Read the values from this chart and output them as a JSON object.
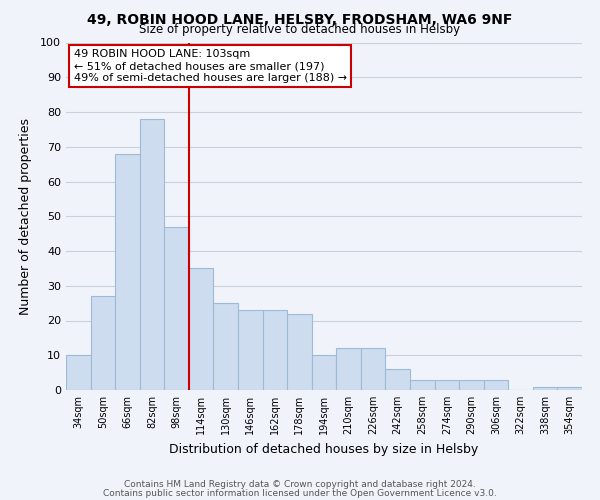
{
  "title": "49, ROBIN HOOD LANE, HELSBY, FRODSHAM, WA6 9NF",
  "subtitle": "Size of property relative to detached houses in Helsby",
  "xlabel": "Distribution of detached houses by size in Helsby",
  "ylabel": "Number of detached properties",
  "bar_labels": [
    "34sqm",
    "50sqm",
    "66sqm",
    "82sqm",
    "98sqm",
    "114sqm",
    "130sqm",
    "146sqm",
    "162sqm",
    "178sqm",
    "194sqm",
    "210sqm",
    "226sqm",
    "242sqm",
    "258sqm",
    "274sqm",
    "290sqm",
    "306sqm",
    "322sqm",
    "338sqm",
    "354sqm"
  ],
  "bar_values": [
    10,
    27,
    68,
    78,
    47,
    35,
    25,
    23,
    23,
    22,
    10,
    12,
    12,
    6,
    3,
    3,
    3,
    3,
    0,
    1,
    1
  ],
  "bar_color": "#cddcee",
  "bar_edge_color": "#9bbbd8",
  "vline_x": 4.5,
  "vline_color": "#cc0000",
  "annotation_title": "49 ROBIN HOOD LANE: 103sqm",
  "annotation_line1": "← 51% of detached houses are smaller (197)",
  "annotation_line2": "49% of semi-detached houses are larger (188) →",
  "annotation_box_color": "#ffffff",
  "annotation_box_edge": "#cc0000",
  "ylim": [
    0,
    100
  ],
  "yticks": [
    0,
    10,
    20,
    30,
    40,
    50,
    60,
    70,
    80,
    90,
    100
  ],
  "footnote1": "Contains HM Land Registry data © Crown copyright and database right 2024.",
  "footnote2": "Contains public sector information licensed under the Open Government Licence v3.0.",
  "bg_color": "#f0f4fa",
  "grid_color": "#c8d0dc"
}
